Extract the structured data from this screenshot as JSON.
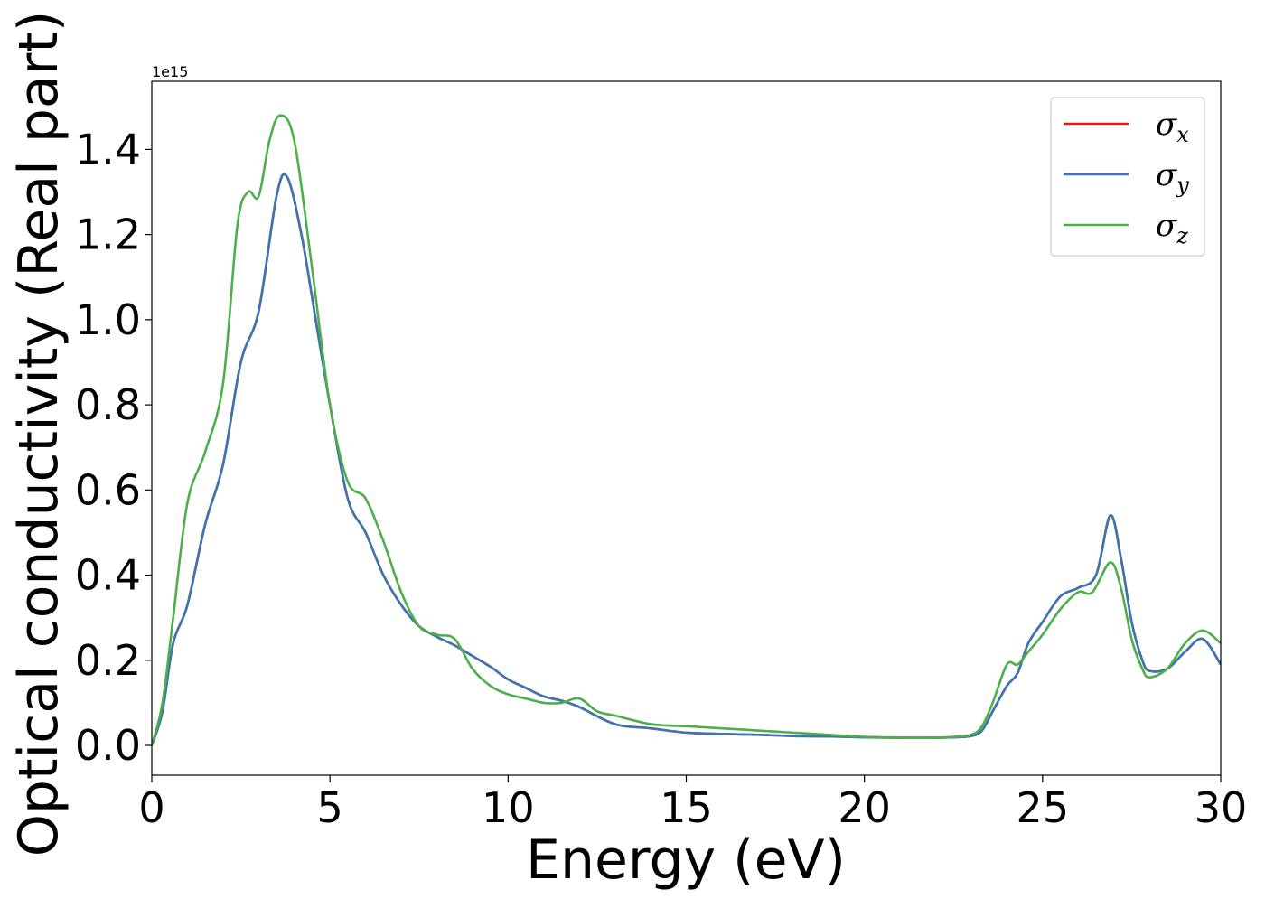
{
  "chart_data": {
    "type": "line",
    "xlabel": "Energy (eV)",
    "ylabel": "Optical conductivity (Real part)",
    "y_offset_text": "1e15",
    "xlim": [
      0,
      30
    ],
    "ylim": [
      -0.07,
      1.56
    ],
    "x_ticks": [
      0,
      5,
      10,
      15,
      20,
      25,
      30
    ],
    "x_tick_labels": [
      "0",
      "5",
      "10",
      "15",
      "20",
      "25",
      "30"
    ],
    "y_ticks": [
      0.0,
      0.2,
      0.4,
      0.6,
      0.8,
      1.0,
      1.2,
      1.4
    ],
    "y_tick_labels": [
      "0.0",
      "0.2",
      "0.4",
      "0.6",
      "0.8",
      "1.0",
      "1.2",
      "1.4"
    ],
    "grid": false,
    "legend_position": "top-right",
    "series": [
      {
        "name": "σ",
        "subscript": "x",
        "color": "#e31a1c",
        "x": [
          0,
          0.3,
          0.6,
          1.0,
          1.5,
          2.0,
          2.5,
          3.0,
          3.5,
          3.8,
          4.2,
          4.6,
          5.0,
          5.5,
          6.0,
          6.5,
          7.0,
          7.5,
          8.0,
          8.5,
          9.0,
          9.5,
          10.0,
          10.5,
          11.0,
          11.5,
          12.0,
          13.0,
          14.0,
          15.0,
          16.0,
          17.0,
          18.0,
          19.0,
          20.0,
          21.0,
          22.0,
          22.5,
          23.0,
          23.3,
          23.6,
          24.0,
          24.3,
          24.6,
          25.0,
          25.5,
          26.0,
          26.5,
          26.9,
          27.2,
          27.5,
          27.8,
          28.0,
          28.5,
          29.0,
          29.5,
          30.0
        ],
        "values": [
          0.0,
          0.08,
          0.24,
          0.33,
          0.52,
          0.66,
          0.9,
          1.02,
          1.29,
          1.335,
          1.2,
          1.0,
          0.8,
          0.58,
          0.5,
          0.4,
          0.33,
          0.28,
          0.255,
          0.235,
          0.21,
          0.185,
          0.155,
          0.135,
          0.115,
          0.105,
          0.09,
          0.05,
          0.04,
          0.03,
          0.027,
          0.025,
          0.022,
          0.021,
          0.019,
          0.018,
          0.018,
          0.019,
          0.022,
          0.035,
          0.08,
          0.14,
          0.17,
          0.24,
          0.29,
          0.35,
          0.37,
          0.4,
          0.54,
          0.44,
          0.29,
          0.2,
          0.175,
          0.18,
          0.22,
          0.25,
          0.19
        ]
      },
      {
        "name": "σ",
        "subscript": "y",
        "color": "#3a76b2",
        "x": [
          0,
          0.3,
          0.6,
          1.0,
          1.5,
          2.0,
          2.5,
          3.0,
          3.5,
          3.8,
          4.2,
          4.6,
          5.0,
          5.5,
          6.0,
          6.5,
          7.0,
          7.5,
          8.0,
          8.5,
          9.0,
          9.5,
          10.0,
          10.5,
          11.0,
          11.5,
          12.0,
          13.0,
          14.0,
          15.0,
          16.0,
          17.0,
          18.0,
          19.0,
          20.0,
          21.0,
          22.0,
          22.5,
          23.0,
          23.3,
          23.6,
          24.0,
          24.3,
          24.6,
          25.0,
          25.5,
          26.0,
          26.5,
          26.9,
          27.2,
          27.5,
          27.8,
          28.0,
          28.5,
          29.0,
          29.5,
          30.0
        ],
        "values": [
          0.0,
          0.08,
          0.24,
          0.33,
          0.52,
          0.66,
          0.9,
          1.02,
          1.29,
          1.335,
          1.2,
          1.0,
          0.8,
          0.58,
          0.5,
          0.4,
          0.33,
          0.28,
          0.255,
          0.235,
          0.21,
          0.185,
          0.155,
          0.135,
          0.115,
          0.105,
          0.09,
          0.05,
          0.04,
          0.03,
          0.027,
          0.025,
          0.022,
          0.021,
          0.019,
          0.018,
          0.018,
          0.019,
          0.022,
          0.035,
          0.08,
          0.14,
          0.17,
          0.24,
          0.29,
          0.35,
          0.37,
          0.4,
          0.54,
          0.44,
          0.29,
          0.2,
          0.175,
          0.18,
          0.22,
          0.25,
          0.19
        ]
      },
      {
        "name": "σ",
        "subscript": "z",
        "color": "#4daf4a",
        "x": [
          0,
          0.3,
          0.6,
          1.0,
          1.5,
          2.0,
          2.4,
          2.7,
          3.0,
          3.3,
          3.6,
          4.0,
          4.5,
          5.0,
          5.5,
          6.0,
          6.5,
          7.0,
          7.5,
          8.0,
          8.5,
          9.0,
          9.5,
          10.0,
          10.5,
          11.0,
          11.5,
          12.0,
          12.5,
          13.0,
          14.0,
          15.0,
          16.0,
          17.0,
          18.0,
          19.0,
          20.0,
          21.0,
          22.0,
          22.5,
          23.0,
          23.3,
          23.6,
          24.0,
          24.3,
          24.6,
          25.0,
          25.5,
          26.0,
          26.4,
          26.9,
          27.2,
          27.5,
          27.8,
          28.0,
          28.5,
          29.0,
          29.5,
          30.0
        ],
        "values": [
          0.0,
          0.1,
          0.3,
          0.57,
          0.69,
          0.85,
          1.22,
          1.3,
          1.29,
          1.42,
          1.48,
          1.42,
          1.12,
          0.8,
          0.62,
          0.58,
          0.48,
          0.36,
          0.28,
          0.26,
          0.25,
          0.18,
          0.14,
          0.12,
          0.11,
          0.1,
          0.1,
          0.11,
          0.08,
          0.07,
          0.05,
          0.045,
          0.04,
          0.035,
          0.03,
          0.025,
          0.02,
          0.018,
          0.018,
          0.02,
          0.025,
          0.045,
          0.1,
          0.19,
          0.19,
          0.22,
          0.26,
          0.32,
          0.36,
          0.36,
          0.43,
          0.37,
          0.25,
          0.18,
          0.16,
          0.18,
          0.24,
          0.27,
          0.24
        ]
      }
    ]
  }
}
